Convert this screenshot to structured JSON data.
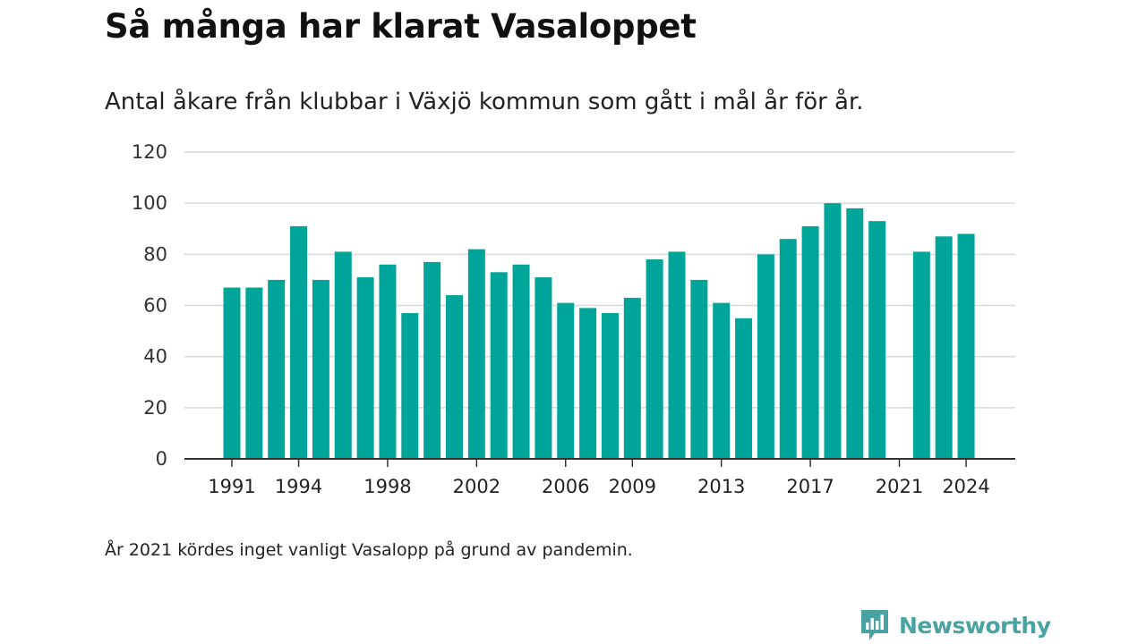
{
  "title": "Så många har klarat Vasaloppet",
  "subtitle": "Antal åkare från klubbar i Växjö kommun som gått i mål år för år.",
  "footnote": "År 2021 kördes inget vanligt Vasalopp på grund av pandemin.",
  "brand": {
    "name": "Newsworthy",
    "icon": "newsworthy-logo-icon",
    "color": "#4aa3a3"
  },
  "colors": {
    "bar": "#00a59a",
    "grid": "#d9d9d9",
    "axis": "#333333"
  },
  "chart_data": {
    "type": "bar",
    "x": [
      1991,
      1992,
      1993,
      1994,
      1995,
      1996,
      1997,
      1998,
      1999,
      2000,
      2001,
      2002,
      2003,
      2004,
      2005,
      2006,
      2007,
      2008,
      2009,
      2010,
      2011,
      2012,
      2013,
      2014,
      2015,
      2016,
      2017,
      2018,
      2019,
      2020,
      2021,
      2022,
      2023,
      2024
    ],
    "values": [
      67,
      67,
      70,
      91,
      70,
      81,
      71,
      76,
      57,
      77,
      64,
      82,
      73,
      76,
      71,
      61,
      59,
      57,
      63,
      78,
      81,
      70,
      61,
      55,
      80,
      86,
      91,
      100,
      98,
      93,
      null,
      81,
      87,
      88
    ],
    "x_tick_labels": [
      "1991",
      "1994",
      "1998",
      "2002",
      "2006",
      "2009",
      "2013",
      "2017",
      "2021",
      "2024"
    ],
    "y_ticks": [
      0,
      20,
      40,
      60,
      80,
      100,
      120
    ],
    "ylim": [
      0,
      120
    ],
    "xlabel": "",
    "ylabel": "",
    "grid": true,
    "legend": "none"
  }
}
